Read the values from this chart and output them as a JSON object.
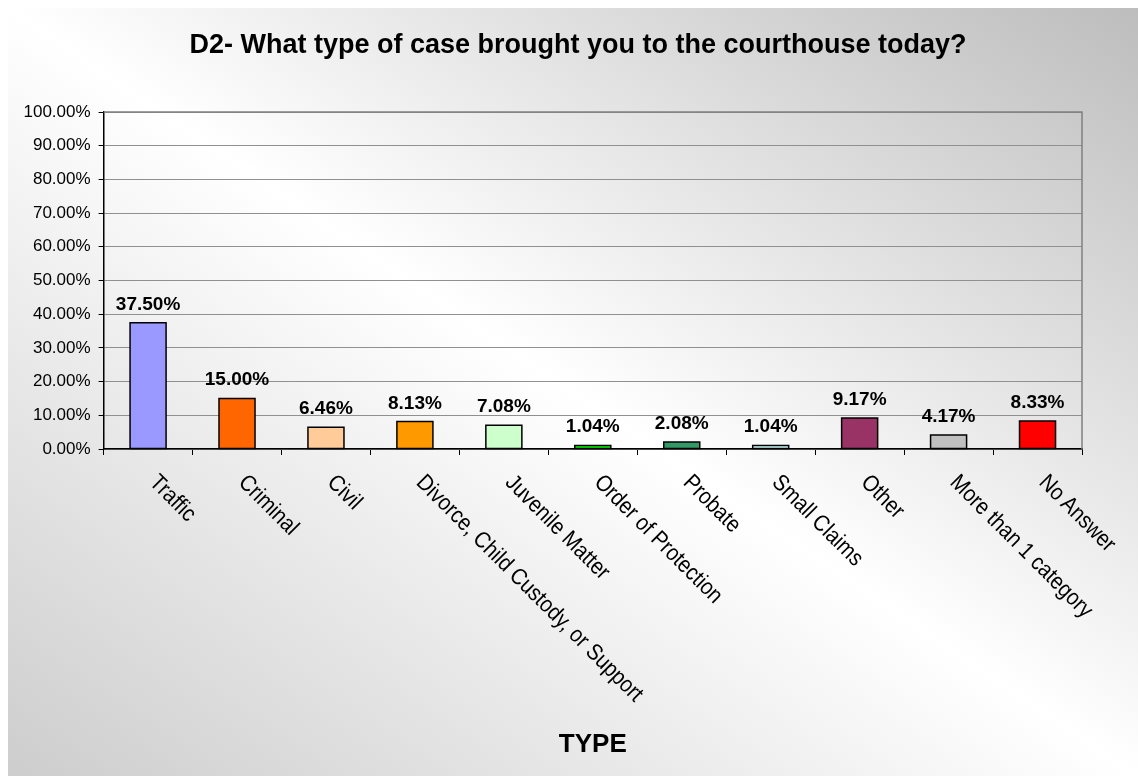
{
  "chart_data": {
    "type": "bar",
    "title": "D2- What type of case brought you to the courthouse today?",
    "xlabel": "TYPE",
    "categories": [
      "Traffic",
      "Criminal",
      "Civil",
      "Divorce, Child Custody, or Support",
      "Juvenile Matter",
      "Order of Protection",
      "Probate",
      "Small Claims",
      "Other",
      "More than 1 category",
      "No Answer"
    ],
    "values": [
      37.5,
      15,
      6.46,
      8.13,
      7.08,
      1.04,
      2.08,
      1.04,
      9.17,
      4.17,
      8.33
    ],
    "colors": [
      "#9999ff",
      "#ff6600",
      "#ffcc99",
      "#ff9900",
      "#ccffcc",
      "#00ff00",
      "#339966",
      "#ccffff",
      "#993366",
      "#c0c0c0",
      "#ff0000"
    ],
    "value_labels": [
      "37.50%",
      "15.00%",
      "6.46%",
      "8.13%",
      "7.08%",
      "1.04%",
      "2.08%",
      "1.04%",
      "9.17%",
      "4.17%",
      "8.33%"
    ],
    "ylim": [
      0,
      100
    ],
    "yticks": [
      {
        "value": 0,
        "label": "0.00%"
      },
      {
        "value": 10,
        "label": "10.00%"
      },
      {
        "value": 20,
        "label": "20.00%"
      },
      {
        "value": 30,
        "label": "30.00%"
      },
      {
        "value": 40,
        "label": "40.00%"
      },
      {
        "value": 50,
        "label": "50.00%"
      },
      {
        "value": 60,
        "label": "60.00%"
      },
      {
        "value": 70,
        "label": "70.00%"
      },
      {
        "value": 80,
        "label": "80.00%"
      },
      {
        "value": 90,
        "label": "90.00%"
      },
      {
        "value": 100,
        "label": "100.00%"
      }
    ],
    "grid": "y"
  }
}
